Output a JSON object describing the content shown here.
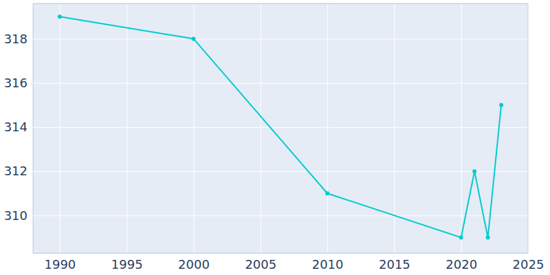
{
  "chart_data": {
    "type": "line",
    "x": [
      1990,
      2000,
      2010,
      2020,
      2021,
      2022,
      2023
    ],
    "values": [
      319,
      318,
      311,
      309,
      312,
      309,
      315
    ],
    "color": "#00cccc",
    "marker": "circle",
    "xlim": [
      1988,
      2025
    ],
    "xticks": [
      1990,
      1995,
      2000,
      2005,
      2010,
      2015,
      2020,
      2025
    ],
    "ylim": [
      308.3,
      319.6
    ],
    "yticks": [
      310,
      312,
      314,
      316,
      318
    ],
    "grid": true
  }
}
